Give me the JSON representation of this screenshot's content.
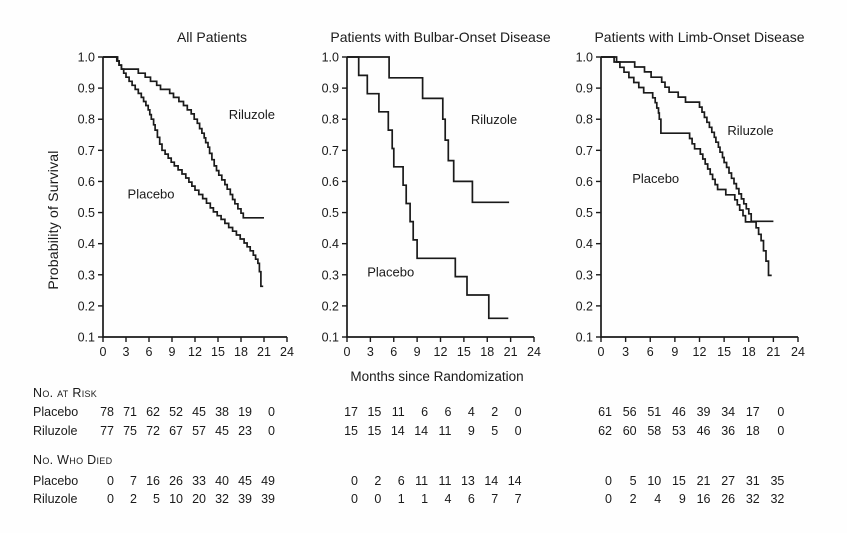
{
  "figure": {
    "y_axis_label": "Probability of Survival",
    "x_axis_label": "Months since Randomization"
  },
  "tables": {
    "at_risk_header": "No. at Risk",
    "died_header": "No. Who Died",
    "placebo_label": "Placebo",
    "riluzole_label": "Riluzole"
  },
  "chart_data": [
    {
      "type": "line",
      "subtype": "kaplan_meier_step",
      "title": "All Patients",
      "xlabel": "Months since Randomization",
      "ylabel": "Probability of Survival",
      "xlim": [
        0,
        24
      ],
      "ylim": [
        0.1,
        1.0
      ],
      "x_ticks": [
        0,
        3,
        6,
        9,
        12,
        15,
        18,
        21,
        24
      ],
      "y_ticks": [
        1.0,
        0.9,
        0.8,
        0.7,
        0.6,
        0.5,
        0.4,
        0.3,
        0.2,
        0.1
      ],
      "grid": false,
      "legend_position": "inline-labels",
      "series": [
        {
          "name": "Riluzole",
          "label_pos": {
            "x": 16.4,
            "y": 0.8
          },
          "points": [
            [
              0,
              1.0
            ],
            [
              1.8,
              0.987
            ],
            [
              2.1,
              0.974
            ],
            [
              2.4,
              0.961
            ],
            [
              4.6,
              0.948
            ],
            [
              5.5,
              0.935
            ],
            [
              6.2,
              0.922
            ],
            [
              7.0,
              0.909
            ],
            [
              7.5,
              0.896
            ],
            [
              8.7,
              0.883
            ],
            [
              9.2,
              0.87
            ],
            [
              9.9,
              0.857
            ],
            [
              10.5,
              0.844
            ],
            [
              11.0,
              0.83
            ],
            [
              11.5,
              0.817
            ],
            [
              11.9,
              0.8
            ],
            [
              12.3,
              0.787
            ],
            [
              12.6,
              0.77
            ],
            [
              12.9,
              0.755
            ],
            [
              13.2,
              0.74
            ],
            [
              13.4,
              0.725
            ],
            [
              13.7,
              0.71
            ],
            [
              13.9,
              0.69
            ],
            [
              14.2,
              0.67
            ],
            [
              14.5,
              0.65
            ],
            [
              14.8,
              0.635
            ],
            [
              15.1,
              0.62
            ],
            [
              15.5,
              0.605
            ],
            [
              15.9,
              0.59
            ],
            [
              16.2,
              0.575
            ],
            [
              16.6,
              0.558
            ],
            [
              16.9,
              0.542
            ],
            [
              17.2,
              0.528
            ],
            [
              17.6,
              0.512
            ],
            [
              18.0,
              0.498
            ],
            [
              18.3,
              0.483
            ],
            [
              21.0,
              0.483
            ]
          ]
        },
        {
          "name": "Placebo",
          "label_pos": {
            "x": 3.2,
            "y": 0.545
          },
          "points": [
            [
              0,
              1.0
            ],
            [
              1.9,
              0.987
            ],
            [
              2.1,
              0.974
            ],
            [
              2.4,
              0.961
            ],
            [
              2.7,
              0.948
            ],
            [
              3.0,
              0.935
            ],
            [
              3.4,
              0.922
            ],
            [
              3.8,
              0.909
            ],
            [
              4.2,
              0.896
            ],
            [
              4.6,
              0.883
            ],
            [
              5.0,
              0.87
            ],
            [
              5.3,
              0.857
            ],
            [
              5.6,
              0.844
            ],
            [
              5.9,
              0.83
            ],
            [
              6.1,
              0.815
            ],
            [
              6.3,
              0.8
            ],
            [
              6.6,
              0.782
            ],
            [
              6.8,
              0.765
            ],
            [
              7.1,
              0.742
            ],
            [
              7.4,
              0.72
            ],
            [
              7.7,
              0.7
            ],
            [
              8.1,
              0.688
            ],
            [
              8.5,
              0.675
            ],
            [
              8.9,
              0.662
            ],
            [
              9.3,
              0.65
            ],
            [
              9.8,
              0.637
            ],
            [
              10.3,
              0.624
            ],
            [
              10.8,
              0.611
            ],
            [
              11.2,
              0.598
            ],
            [
              11.6,
              0.585
            ],
            [
              12.0,
              0.572
            ],
            [
              12.5,
              0.558
            ],
            [
              13.0,
              0.545
            ],
            [
              13.5,
              0.53
            ],
            [
              14.0,
              0.515
            ],
            [
              14.4,
              0.502
            ],
            [
              14.9,
              0.49
            ],
            [
              15.4,
              0.478
            ],
            [
              15.9,
              0.465
            ],
            [
              16.4,
              0.452
            ],
            [
              16.9,
              0.44
            ],
            [
              17.4,
              0.428
            ],
            [
              17.9,
              0.415
            ],
            [
              18.4,
              0.402
            ],
            [
              18.8,
              0.39
            ],
            [
              19.2,
              0.377
            ],
            [
              19.6,
              0.363
            ],
            [
              19.9,
              0.35
            ],
            [
              20.2,
              0.337
            ],
            [
              20.4,
              0.31
            ],
            [
              20.6,
              0.263
            ],
            [
              20.9,
              0.263
            ]
          ]
        }
      ],
      "risk_table": {
        "months": [
          0,
          3,
          6,
          9,
          12,
          15,
          18,
          21
        ],
        "at_risk": {
          "Placebo": [
            78,
            71,
            62,
            52,
            45,
            38,
            19,
            0
          ],
          "Riluzole": [
            77,
            75,
            72,
            67,
            57,
            45,
            23,
            0
          ]
        },
        "who_died": {
          "Placebo": [
            0,
            7,
            16,
            26,
            33,
            40,
            45,
            49
          ],
          "Riluzole": [
            0,
            2,
            5,
            10,
            20,
            32,
            39,
            39
          ]
        }
      }
    },
    {
      "type": "line",
      "subtype": "kaplan_meier_step",
      "title": "Patients with Bulbar-Onset Disease",
      "xlabel": "Months since Randomization",
      "ylabel": "Probability of Survival",
      "xlim": [
        0,
        24
      ],
      "ylim": [
        0.1,
        1.0
      ],
      "x_ticks": [
        0,
        3,
        6,
        9,
        12,
        15,
        18,
        21,
        24
      ],
      "y_ticks": [
        1.0,
        0.9,
        0.8,
        0.7,
        0.6,
        0.5,
        0.4,
        0.3,
        0.2,
        0.1
      ],
      "grid": false,
      "legend_position": "inline-labels",
      "series": [
        {
          "name": "Riluzole",
          "label_pos": {
            "x": 15.9,
            "y": 0.785
          },
          "points": [
            [
              0,
              1.0
            ],
            [
              5.4,
              0.933
            ],
            [
              9.7,
              0.867
            ],
            [
              12.3,
              0.8
            ],
            [
              12.6,
              0.733
            ],
            [
              13.0,
              0.667
            ],
            [
              13.7,
              0.6
            ],
            [
              16.1,
              0.533
            ],
            [
              20.8,
              0.533
            ]
          ]
        },
        {
          "name": "Placebo",
          "label_pos": {
            "x": 2.6,
            "y": 0.295
          },
          "points": [
            [
              0,
              1.0
            ],
            [
              1.5,
              0.941
            ],
            [
              2.6,
              0.882
            ],
            [
              4.1,
              0.824
            ],
            [
              5.3,
              0.765
            ],
            [
              5.8,
              0.706
            ],
            [
              6.0,
              0.647
            ],
            [
              7.2,
              0.588
            ],
            [
              7.6,
              0.529
            ],
            [
              8.1,
              0.471
            ],
            [
              8.5,
              0.412
            ],
            [
              9.0,
              0.353
            ],
            [
              13.9,
              0.294
            ],
            [
              15.4,
              0.235
            ],
            [
              18.2,
              0.16
            ],
            [
              20.7,
              0.16
            ]
          ]
        }
      ],
      "risk_table": {
        "months": [
          0,
          3,
          6,
          9,
          12,
          15,
          18,
          21
        ],
        "at_risk": {
          "Placebo": [
            17,
            15,
            11,
            6,
            6,
            4,
            2,
            0
          ],
          "Riluzole": [
            15,
            15,
            14,
            14,
            11,
            9,
            5,
            0
          ]
        },
        "who_died": {
          "Placebo": [
            0,
            2,
            6,
            11,
            11,
            13,
            14,
            14
          ],
          "Riluzole": [
            0,
            0,
            1,
            1,
            4,
            6,
            7,
            7
          ]
        }
      }
    },
    {
      "type": "line",
      "subtype": "kaplan_meier_step",
      "title": "Patients with Limb-Onset Disease",
      "xlabel": "Months since Randomization",
      "ylabel": "Probability of Survival",
      "xlim": [
        0,
        24
      ],
      "ylim": [
        0.1,
        1.0
      ],
      "x_ticks": [
        0,
        3,
        6,
        9,
        12,
        15,
        18,
        21,
        24
      ],
      "y_ticks": [
        1.0,
        0.9,
        0.8,
        0.7,
        0.6,
        0.5,
        0.4,
        0.3,
        0.2,
        0.1
      ],
      "grid": false,
      "legend_position": "inline-labels",
      "series": [
        {
          "name": "Riluzole",
          "label_pos": {
            "x": 15.4,
            "y": 0.75
          },
          "points": [
            [
              0,
              1.0
            ],
            [
              1.6,
              0.984
            ],
            [
              4.1,
              0.968
            ],
            [
              5.3,
              0.952
            ],
            [
              6.1,
              0.935
            ],
            [
              7.4,
              0.919
            ],
            [
              7.8,
              0.903
            ],
            [
              8.3,
              0.887
            ],
            [
              9.4,
              0.871
            ],
            [
              10.3,
              0.855
            ],
            [
              12.0,
              0.839
            ],
            [
              12.3,
              0.823
            ],
            [
              12.6,
              0.806
            ],
            [
              12.9,
              0.79
            ],
            [
              13.2,
              0.774
            ],
            [
              13.5,
              0.758
            ],
            [
              13.8,
              0.742
            ],
            [
              14.0,
              0.726
            ],
            [
              14.3,
              0.71
            ],
            [
              14.5,
              0.694
            ],
            [
              14.8,
              0.677
            ],
            [
              15.0,
              0.661
            ],
            [
              15.3,
              0.645
            ],
            [
              15.6,
              0.627
            ],
            [
              15.9,
              0.61
            ],
            [
              16.2,
              0.593
            ],
            [
              16.5,
              0.577
            ],
            [
              16.8,
              0.56
            ],
            [
              17.1,
              0.544
            ],
            [
              17.4,
              0.528
            ],
            [
              17.7,
              0.512
            ],
            [
              18.0,
              0.496
            ],
            [
              18.3,
              0.472
            ],
            [
              21.0,
              0.472
            ]
          ]
        },
        {
          "name": "Placebo",
          "label_pos": {
            "x": 3.8,
            "y": 0.595
          },
          "points": [
            [
              0,
              1.0
            ],
            [
              1.9,
              0.984
            ],
            [
              2.3,
              0.967
            ],
            [
              2.8,
              0.951
            ],
            [
              3.4,
              0.934
            ],
            [
              4.0,
              0.918
            ],
            [
              4.6,
              0.902
            ],
            [
              5.2,
              0.885
            ],
            [
              6.3,
              0.869
            ],
            [
              6.6,
              0.853
            ],
            [
              6.8,
              0.836
            ],
            [
              7.0,
              0.82
            ],
            [
              7.1,
              0.8
            ],
            [
              7.3,
              0.755
            ],
            [
              10.8,
              0.738
            ],
            [
              11.1,
              0.721
            ],
            [
              11.4,
              0.705
            ],
            [
              12.1,
              0.688
            ],
            [
              12.4,
              0.672
            ],
            [
              12.7,
              0.656
            ],
            [
              13.0,
              0.64
            ],
            [
              13.3,
              0.623
            ],
            [
              13.6,
              0.607
            ],
            [
              13.9,
              0.59
            ],
            [
              14.2,
              0.574
            ],
            [
              15.2,
              0.557
            ],
            [
              16.3,
              0.541
            ],
            [
              16.6,
              0.525
            ],
            [
              16.9,
              0.508
            ],
            [
              17.3,
              0.49
            ],
            [
              17.6,
              0.47
            ],
            [
              18.9,
              0.451
            ],
            [
              19.2,
              0.43
            ],
            [
              19.5,
              0.41
            ],
            [
              19.8,
              0.377
            ],
            [
              20.1,
              0.344
            ],
            [
              20.4,
              0.298
            ],
            [
              20.8,
              0.298
            ]
          ]
        }
      ],
      "risk_table": {
        "months": [
          0,
          3,
          6,
          9,
          12,
          15,
          18,
          21
        ],
        "at_risk": {
          "Placebo": [
            61,
            56,
            51,
            46,
            39,
            34,
            17,
            0
          ],
          "Riluzole": [
            62,
            60,
            58,
            53,
            46,
            36,
            18,
            0
          ]
        },
        "who_died": {
          "Placebo": [
            0,
            5,
            10,
            15,
            21,
            27,
            31,
            35
          ],
          "Riluzole": [
            0,
            2,
            4,
            9,
            16,
            26,
            32,
            32
          ]
        }
      }
    }
  ],
  "ink_color": "#1a1a1a"
}
